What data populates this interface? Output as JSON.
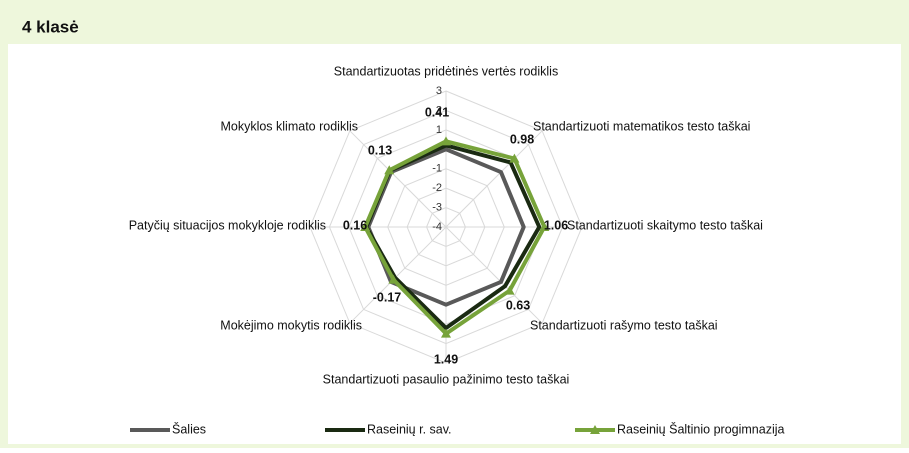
{
  "chart_data": {
    "type": "radar",
    "title": "4 klasė",
    "categories": [
      "Standartizuotas pridėtinės vertės rodiklis",
      "Standartizuoti matematikos testo taškai",
      "Standartizuoti skaitymo testo taškai",
      "Standartizuoti rašymo testo taškai",
      "Standartizuoti pasaulio pažinimo testo taškai",
      "Mokėjimo mokytis rodiklis",
      "Patyčių situacijos mokykloje rodiklis",
      "Mokyklos klimato rodiklis"
    ],
    "series": [
      {
        "name": "Šalies",
        "color": "#595959",
        "values": [
          0,
          0,
          0,
          0,
          0,
          0,
          0,
          0
        ]
      },
      {
        "name": "Raseinių r. sav.",
        "color": "#1a2a12",
        "values": [
          0.2,
          0.7,
          0.8,
          0.3,
          1.2,
          -0.3,
          0.1,
          0.1
        ]
      },
      {
        "name": "Raseinių Šaltinio progimnazija",
        "color": "#77a33a",
        "values": [
          0.41,
          0.98,
          1.06,
          0.63,
          1.49,
          -0.17,
          0.16,
          0.13
        ]
      }
    ],
    "ylim": [
      -4,
      3
    ],
    "yticks": [
      -4,
      -3,
      -2,
      -1,
      0,
      1,
      2,
      3
    ],
    "grid": true,
    "legend": "bottom"
  }
}
